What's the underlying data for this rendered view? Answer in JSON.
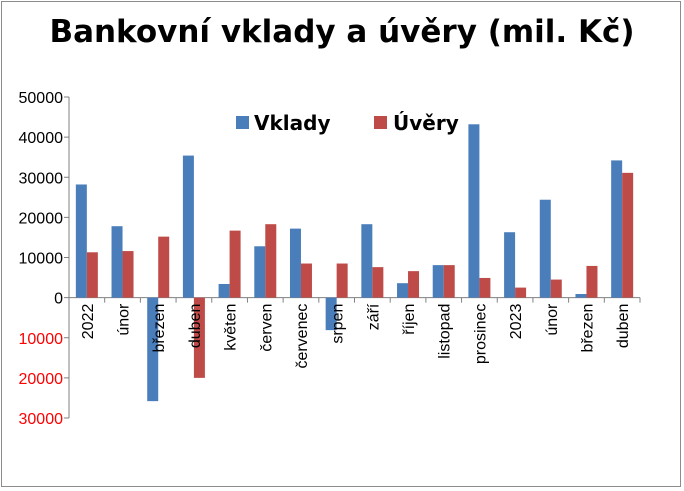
{
  "chart_data": {
    "type": "bar",
    "title": "Bankovní vklady a úvěry (mil. Kč)",
    "categories": [
      "2022",
      "únor",
      "březen",
      "duben",
      "květen",
      "červen",
      "červenec",
      "srpen",
      "září",
      "říjen",
      "listopad",
      "prosinec",
      "2023",
      "únor",
      "březen",
      "duben"
    ],
    "series": [
      {
        "name": "Vklady",
        "color": "#4a7ebb",
        "values": [
          28200,
          17800,
          -25800,
          35400,
          3400,
          12800,
          17200,
          -8100,
          18300,
          3600,
          8100,
          43200,
          16300,
          24400,
          900,
          34200
        ]
      },
      {
        "name": "Úvěry",
        "color": "#be4b48",
        "values": [
          11300,
          11600,
          15200,
          -20000,
          16700,
          18300,
          8500,
          8500,
          7600,
          6600,
          8100,
          4900,
          2500,
          4500,
          7900,
          31100
        ]
      }
    ],
    "ylim": [
      -30000,
      50000
    ],
    "yticks": [
      50000,
      40000,
      30000,
      20000,
      10000,
      0,
      -10000,
      -20000,
      -30000
    ],
    "ytick_labels": [
      "50000",
      "40000",
      "30000",
      "20000",
      "10000",
      "0",
      "10000",
      "20000",
      "30000"
    ],
    "ytick_colors": [
      "#000000",
      "#000000",
      "#000000",
      "#000000",
      "#000000",
      "#000000",
      "#ff0000",
      "#ff0000",
      "#ff0000"
    ],
    "legend_position": "top-center",
    "grid": false
  }
}
